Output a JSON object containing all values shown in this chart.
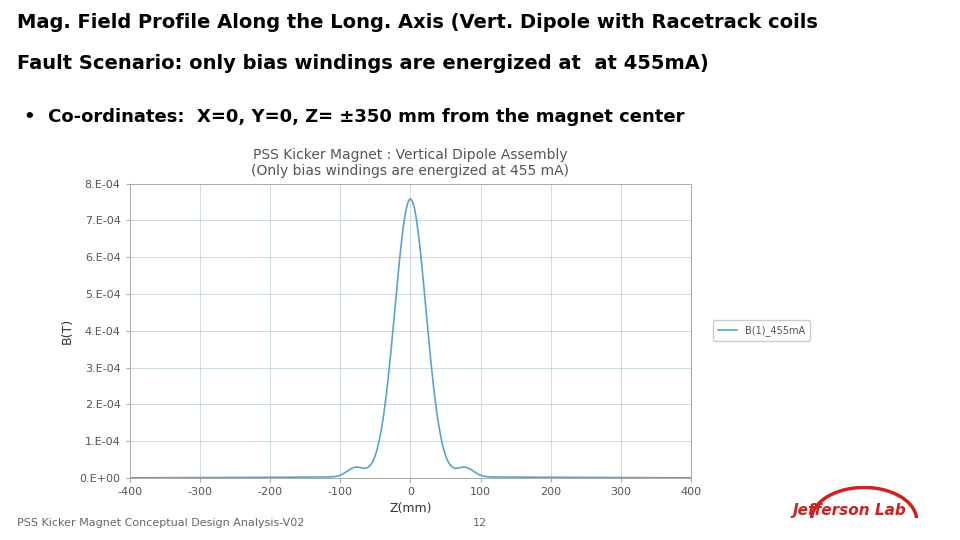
{
  "title_main_line1": "Mag. Field Profile Along the Long. Axis (Vert. Dipole with Racetrack coils",
  "title_main_line2": "Fault Scenario: only bias windings are energized at  at 455mA)",
  "bullet_text": "Co-ordinates:  X=0, Y=0, Z= ±350 mm from the magnet center",
  "chart_title_line1": "PSS Kicker Magnet : Vertical Dipole Assembly",
  "chart_title_line2": "(Only bias windings are energized at 455 mA)",
  "xlabel": "Z(mm)",
  "ylabel": "B(T)",
  "legend_label": "B(1)_455mA",
  "line_color": "#5BA3C9",
  "background_color": "#ffffff",
  "plot_bg_color": "#ffffff",
  "grid_color": "#b8cdd8",
  "xmin": -400,
  "xmax": 400,
  "ymin": 0.0,
  "ymax": 0.0008,
  "footer_left": "PSS Kicker Magnet Conceptual Design Analysis-V02",
  "footer_center": "12",
  "divider_color": "#8B1A1A",
  "title_font_size": 14,
  "bullet_font_size": 13,
  "chart_title_font_size": 10,
  "axis_label_font_size": 9,
  "tick_font_size": 8,
  "legend_font_size": 7,
  "footer_font_size": 8
}
